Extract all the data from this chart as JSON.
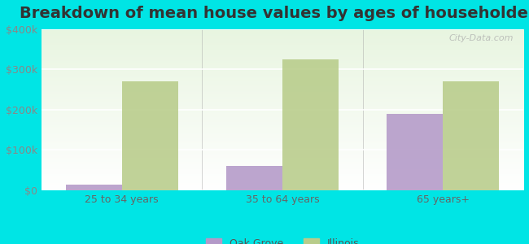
{
  "title": "Breakdown of mean house values by ages of householders",
  "categories": [
    "25 to 34 years",
    "35 to 64 years",
    "65 years+"
  ],
  "oak_grove": [
    15000,
    60000,
    190000
  ],
  "illinois": [
    270000,
    325000,
    270000
  ],
  "oak_grove_color": "#b399c8",
  "illinois_color": "#b8cc8a",
  "background_color": "#00e5e5",
  "ylim": [
    0,
    400000
  ],
  "yticks": [
    0,
    100000,
    200000,
    300000,
    400000
  ],
  "ytick_labels": [
    "$0",
    "$100k",
    "$200k",
    "$300k",
    "$400k"
  ],
  "legend_labels": [
    "Oak Grove",
    "Illinois"
  ],
  "bar_width": 0.35,
  "title_fontsize": 14,
  "tick_fontsize": 9,
  "legend_fontsize": 9,
  "watermark_text": "City-Data.com"
}
